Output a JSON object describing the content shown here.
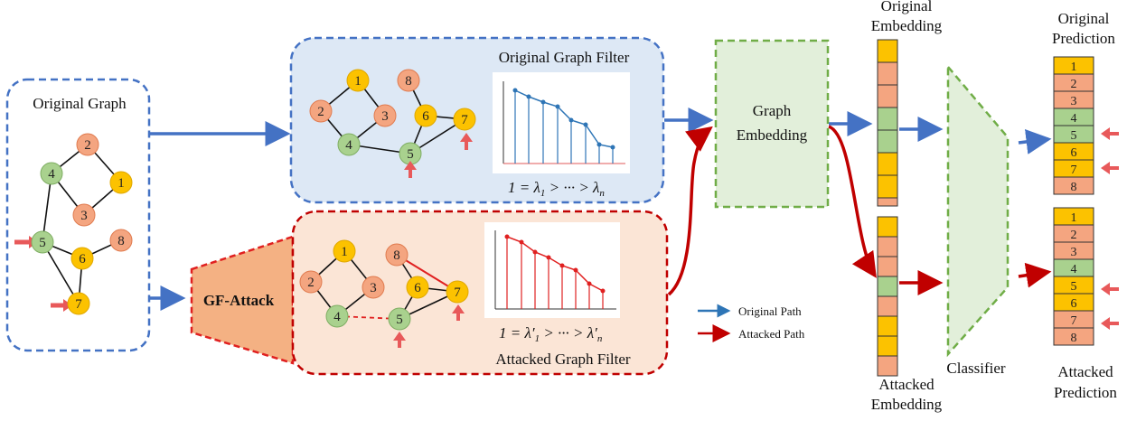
{
  "original_graph": {
    "title": "Original Graph",
    "nodes": [
      "1",
      "2",
      "3",
      "4",
      "5",
      "6",
      "7",
      "8"
    ]
  },
  "original_filter": {
    "title": "Original Graph Filter",
    "formula_parts": [
      "1 = λ",
      "1",
      " > ··· > λ",
      "n"
    ]
  },
  "attacked_filter": {
    "title": "Attacked Graph Filter",
    "formula_parts": [
      "1 = λ′",
      "1",
      " > ··· > λ′",
      "n"
    ]
  },
  "attack_label": "GF-Attack",
  "graph_embedding": {
    "line1": "Graph",
    "line2": "Embedding"
  },
  "original_embedding": {
    "line1": "Original",
    "line2": "Embedding"
  },
  "attacked_embedding": {
    "line1": "Attacked",
    "line2": "Embedding"
  },
  "classifier_label": "Classifier",
  "original_prediction": {
    "line1": "Original",
    "line2": "Prediction",
    "rows": [
      "1",
      "2",
      "3",
      "4",
      "5",
      "6",
      "7",
      "8"
    ]
  },
  "attacked_prediction": {
    "line1": "Attacked",
    "line2": "Prediction",
    "rows": [
      "1",
      "2",
      "3",
      "4",
      "5",
      "6",
      "7",
      "8"
    ]
  },
  "legend": {
    "original_path": "Original Path",
    "attacked_path": "Attacked Path"
  },
  "colors": {
    "orange_node": "#f4a580",
    "yellow_node": "#fcc200",
    "green_node": "#a9d18e",
    "blue_path": "#4472c4",
    "red_path": "#c00000",
    "attack_arrow": "#e8595a",
    "dashed_green": "#70ad47"
  }
}
